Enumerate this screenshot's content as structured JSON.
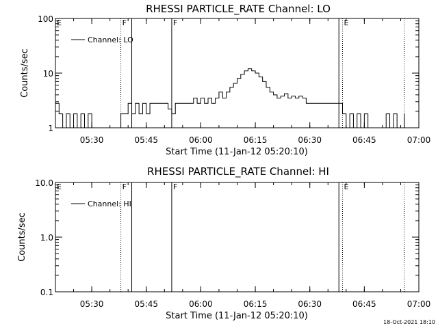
{
  "footer": {
    "timestamp": "18-Oct-2021 18:10"
  },
  "chart_data": [
    {
      "type": "line",
      "title": "RHESSI PARTICLE_RATE Channel: LO",
      "xlabel": "Start Time (11-Jan-12 05:20:10)",
      "ylabel": "Counts/sec",
      "yscale": "log",
      "ylim": [
        1,
        100
      ],
      "y_ticks": [
        "1",
        "10",
        "100"
      ],
      "xlim_minutes_after_0520": [
        0,
        100
      ],
      "x_ticks": [
        "05:30",
        "05:45",
        "06:00",
        "06:15",
        "06:30",
        "06:45",
        "07:00"
      ],
      "legend": {
        "placement": "top-left",
        "entries": [
          "Channel: LO"
        ]
      },
      "markers": [
        {
          "label": "E",
          "time": "05:20",
          "style": "none"
        },
        {
          "label": "F",
          "time": "05:38",
          "style": "dotted"
        },
        {
          "label": "",
          "time": "05:41",
          "style": "solid"
        },
        {
          "label": "F",
          "time": "05:52",
          "style": "solid"
        },
        {
          "label": "",
          "time": "06:38",
          "style": "solid"
        },
        {
          "label": "E",
          "time": "06:39",
          "style": "dotted"
        },
        {
          "label": "",
          "time": "06:56",
          "style": "dotted"
        }
      ],
      "series": [
        {
          "name": "Channel: LO",
          "x": [
            "05:20",
            "05:21",
            "05:22",
            "05:23",
            "05:24",
            "05:25",
            "05:26",
            "05:27",
            "05:28",
            "05:29",
            "05:30",
            "05:31",
            "05:32",
            "05:33",
            "05:34",
            "05:35",
            "05:36",
            "05:37",
            "05:38",
            "05:39",
            "05:40",
            "05:41",
            "05:42",
            "05:43",
            "05:44",
            "05:45",
            "05:46",
            "05:47",
            "05:48",
            "05:49",
            "05:50",
            "05:51",
            "05:52",
            "05:53",
            "05:54",
            "05:55",
            "05:56",
            "05:57",
            "05:58",
            "05:59",
            "06:00",
            "06:01",
            "06:02",
            "06:03",
            "06:04",
            "06:05",
            "06:06",
            "06:07",
            "06:08",
            "06:09",
            "06:10",
            "06:11",
            "06:12",
            "06:13",
            "06:14",
            "06:15",
            "06:16",
            "06:17",
            "06:18",
            "06:19",
            "06:20",
            "06:21",
            "06:22",
            "06:23",
            "06:24",
            "06:25",
            "06:26",
            "06:27",
            "06:28",
            "06:29",
            "06:30",
            "06:31",
            "06:32",
            "06:33",
            "06:34",
            "06:35",
            "06:36",
            "06:37",
            "06:38",
            "06:39",
            "06:40",
            "06:41",
            "06:42",
            "06:43",
            "06:44",
            "06:45",
            "06:46",
            "06:47",
            "06:48",
            "06:49",
            "06:50",
            "06:51",
            "06:52",
            "06:53",
            "06:54",
            "06:55",
            "06:56"
          ],
          "y": [
            2.8,
            1.8,
            1.0,
            1.8,
            1.0,
            1.8,
            1.0,
            1.8,
            1.0,
            1.8,
            1.0,
            1.0,
            1.0,
            1.0,
            1.0,
            1.0,
            1.0,
            1.0,
            1.8,
            1.8,
            2.8,
            1.8,
            2.8,
            1.8,
            2.8,
            1.8,
            2.8,
            2.8,
            2.8,
            2.8,
            2.8,
            2.2,
            1.8,
            2.8,
            2.8,
            2.8,
            2.8,
            2.8,
            3.5,
            2.8,
            3.5,
            2.8,
            3.5,
            2.8,
            3.5,
            4.5,
            3.5,
            4.5,
            5.5,
            6.5,
            8.0,
            9.5,
            11.0,
            12.0,
            11.0,
            10.0,
            8.5,
            7.0,
            5.5,
            4.5,
            4.0,
            3.5,
            3.8,
            4.2,
            3.5,
            3.8,
            3.5,
            3.8,
            3.5,
            2.8,
            2.8,
            2.8,
            2.8,
            2.8,
            2.8,
            2.8,
            2.8,
            2.8,
            2.8,
            1.8,
            1.0,
            1.8,
            1.0,
            1.8,
            1.0,
            1.8,
            1.0,
            1.0,
            1.0,
            1.0,
            1.0,
            1.8,
            1.0,
            1.8,
            1.0,
            1.0,
            1.8
          ]
        }
      ]
    },
    {
      "type": "line",
      "title": "RHESSI PARTICLE_RATE Channel: HI",
      "xlabel": "Start Time (11-Jan-12 05:20:10)",
      "ylabel": "Counts/sec",
      "yscale": "log",
      "ylim": [
        0.1,
        10
      ],
      "y_ticks": [
        "0.1",
        "1.0",
        "10.0"
      ],
      "xlim_minutes_after_0520": [
        0,
        100
      ],
      "x_ticks": [
        "05:30",
        "05:45",
        "06:00",
        "06:15",
        "06:30",
        "06:45",
        "07:00"
      ],
      "legend": {
        "placement": "top-left",
        "entries": [
          "Channel: HI"
        ]
      },
      "markers": [
        {
          "label": "E",
          "time": "05:20",
          "style": "none"
        },
        {
          "label": "F",
          "time": "05:38",
          "style": "dotted"
        },
        {
          "label": "",
          "time": "05:41",
          "style": "solid"
        },
        {
          "label": "F",
          "time": "05:52",
          "style": "solid"
        },
        {
          "label": "",
          "time": "06:38",
          "style": "solid"
        },
        {
          "label": "E",
          "time": "06:39",
          "style": "dotted"
        },
        {
          "label": "",
          "time": "06:56",
          "style": "dotted"
        }
      ],
      "series": [
        {
          "name": "Channel: HI",
          "x": [],
          "y": []
        }
      ]
    }
  ]
}
